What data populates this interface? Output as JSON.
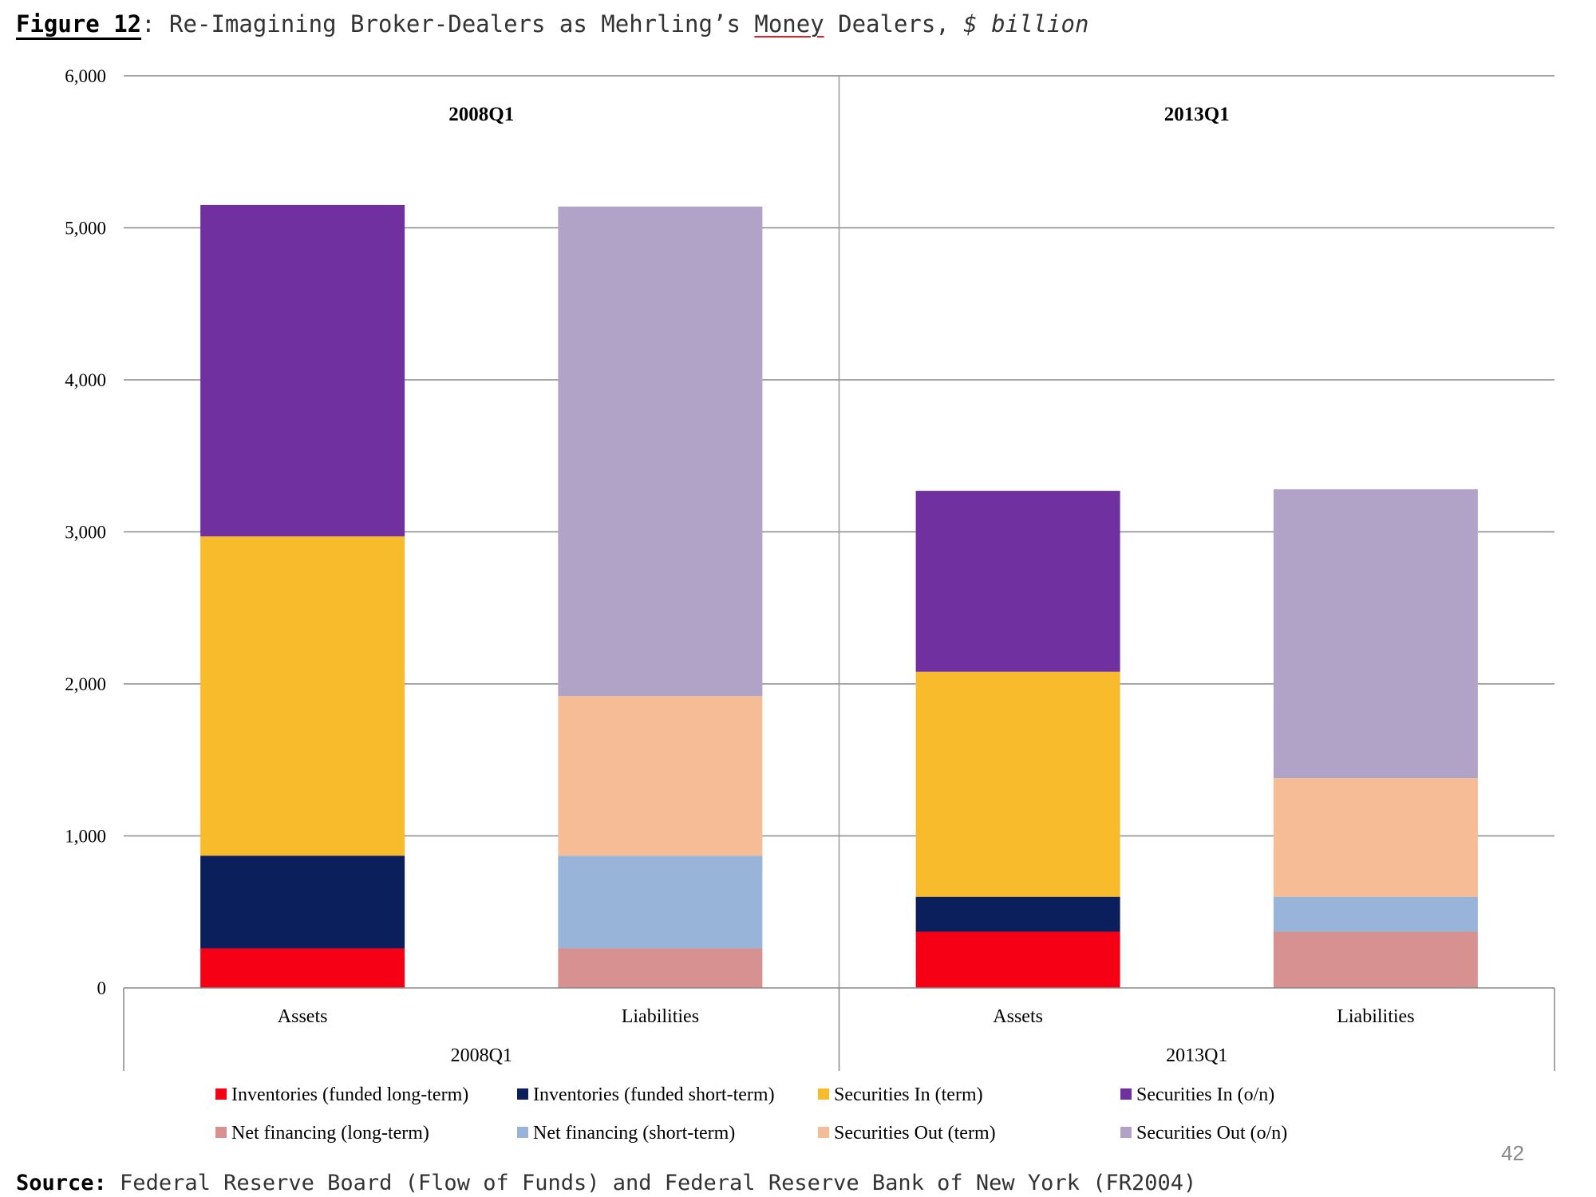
{
  "title": {
    "lead": "Figure 12",
    "pre": ": Re-Imagining Broker-Dealers as Mehrling’s ",
    "money": "Money",
    "post": " Dealers, ",
    "unit": "$ billion"
  },
  "source": {
    "lead": "Source:",
    "text": " Federal Reserve Board (Flow of Funds) and Federal Reserve Bank of New York (FR2004)"
  },
  "page_number": "42",
  "chart_data": {
    "type": "bar",
    "stacked": true,
    "ylim": [
      0,
      6000
    ],
    "yticks": [
      0,
      1000,
      2000,
      3000,
      4000,
      5000,
      6000
    ],
    "ytick_labels": [
      "0",
      "1,000",
      "2,000",
      "3,000",
      "4,000",
      "5,000",
      "6,000"
    ],
    "grid": true,
    "legend_position": "bottom",
    "groups": [
      {
        "label": "2008Q1",
        "panel_label": "2008Q1",
        "categories": [
          "Assets",
          "Liabilities"
        ]
      },
      {
        "label": "2013Q1",
        "panel_label": "2013Q1",
        "categories": [
          "Assets",
          "Liabilities"
        ]
      }
    ],
    "bars": [
      {
        "group": "2008Q1",
        "category": "Assets",
        "segments": [
          {
            "series": "Inventories (funded long-term)",
            "value": 260
          },
          {
            "series": "Inventories (funded short-term)",
            "value": 610
          },
          {
            "series": "Securities In (term)",
            "value": 2100
          },
          {
            "series": "Securities In (o/n)",
            "value": 2180
          }
        ]
      },
      {
        "group": "2008Q1",
        "category": "Liabilities",
        "segments": [
          {
            "series": "Net financing (long-term)",
            "value": 260
          },
          {
            "series": "Net financing (short-term)",
            "value": 610
          },
          {
            "series": "Securities Out (term)",
            "value": 1050
          },
          {
            "series": "Securities Out (o/n)",
            "value": 3220
          }
        ]
      },
      {
        "group": "2013Q1",
        "category": "Assets",
        "segments": [
          {
            "series": "Inventories (funded long-term)",
            "value": 370
          },
          {
            "series": "Inventories (funded short-term)",
            "value": 230
          },
          {
            "series": "Securities In (term)",
            "value": 1480
          },
          {
            "series": "Securities In (o/n)",
            "value": 1190
          }
        ]
      },
      {
        "group": "2013Q1",
        "category": "Liabilities",
        "segments": [
          {
            "series": "Net financing (long-term)",
            "value": 370
          },
          {
            "series": "Net financing (short-term)",
            "value": 230
          },
          {
            "series": "Securities Out (term)",
            "value": 780
          },
          {
            "series": "Securities Out (o/n)",
            "value": 1900
          }
        ]
      }
    ],
    "series": [
      {
        "name": "Inventories (funded long-term)",
        "color": "#f50015"
      },
      {
        "name": "Inventories (funded short-term)",
        "color": "#0b1f5c"
      },
      {
        "name": "Securities In (term)",
        "color": "#f8bb2b"
      },
      {
        "name": "Securities In (o/n)",
        "color": "#7030a0"
      },
      {
        "name": "Net financing (long-term)",
        "color": "#d79190"
      },
      {
        "name": "Net financing (short-term)",
        "color": "#98b4d9"
      },
      {
        "name": "Securities Out (term)",
        "color": "#f5bc95"
      },
      {
        "name": "Securities Out (o/n)",
        "color": "#b1a3c8"
      }
    ]
  }
}
